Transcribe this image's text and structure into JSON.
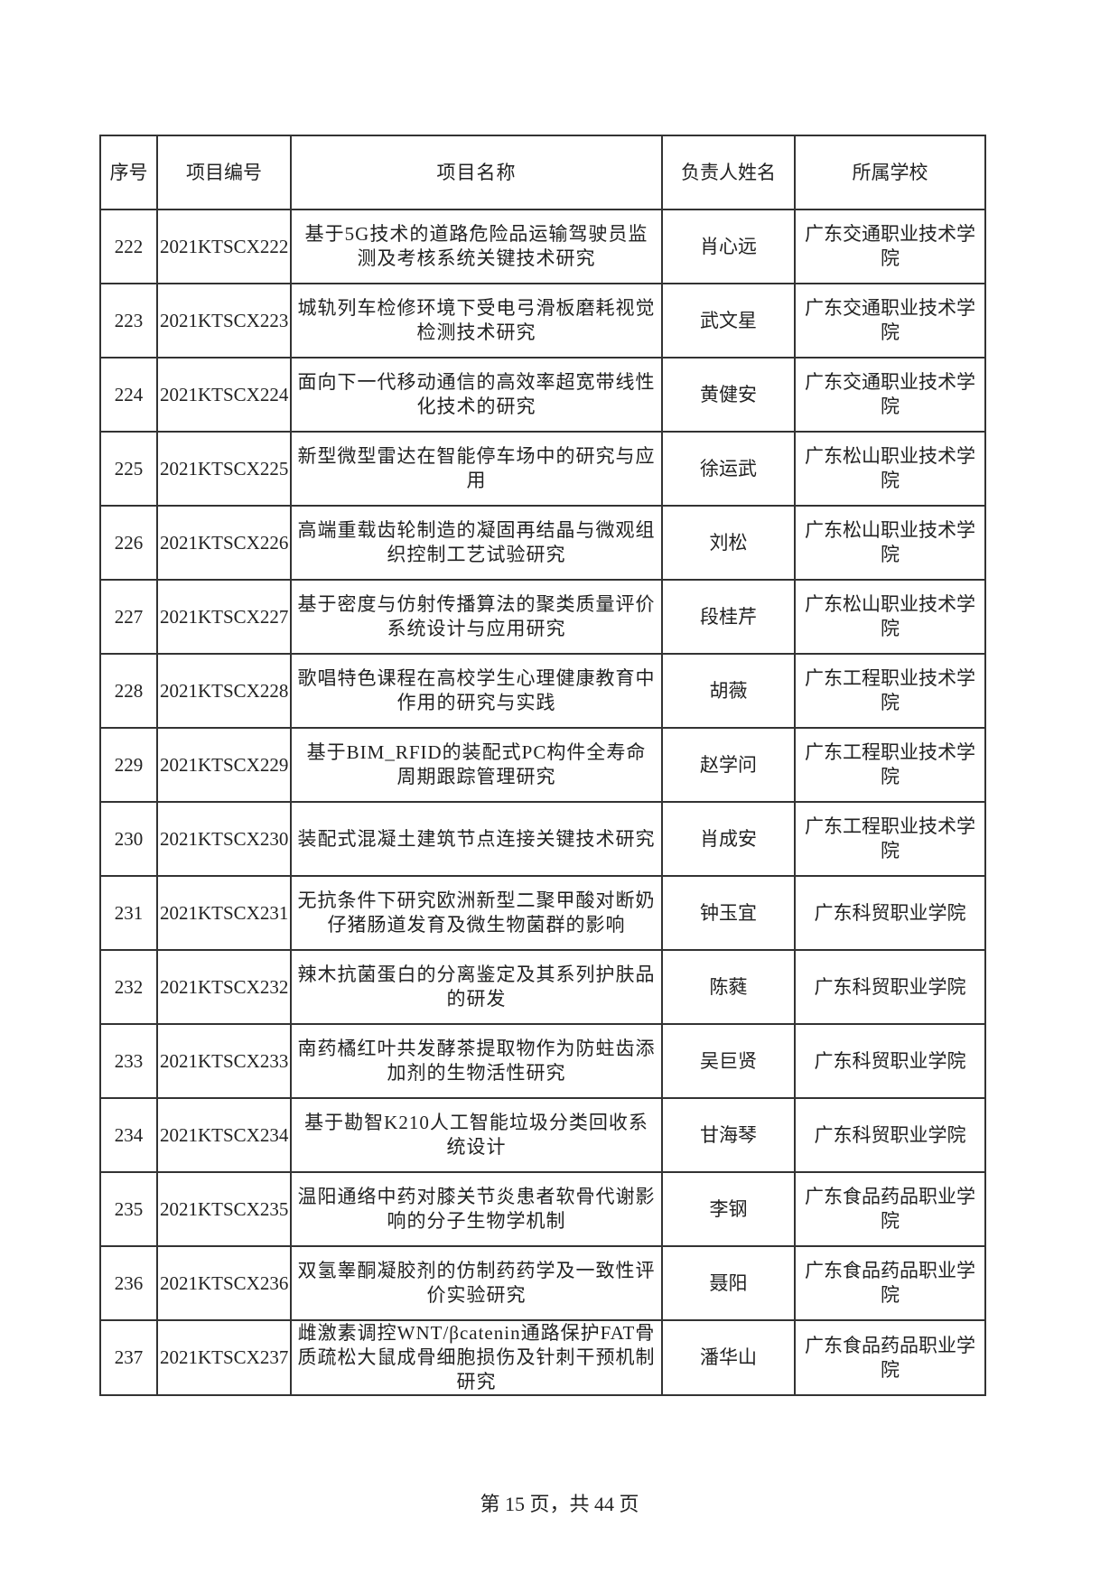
{
  "table": {
    "header": [
      "序号",
      "项目编号",
      "项目名称",
      "负责人姓名",
      "所属学校"
    ],
    "rows": [
      [
        "222",
        "2021KTSCX222",
        "基于5G技术的道路危险品运输驾驶员监测及考核系统关键技术研究",
        "肖心远",
        "广东交通职业技术学院"
      ],
      [
        "223",
        "2021KTSCX223",
        "城轨列车检修环境下受电弓滑板磨耗视觉检测技术研究",
        "武文星",
        "广东交通职业技术学院"
      ],
      [
        "224",
        "2021KTSCX224",
        "面向下一代移动通信的高效率超宽带线性化技术的研究",
        "黄健安",
        "广东交通职业技术学院"
      ],
      [
        "225",
        "2021KTSCX225",
        "新型微型雷达在智能停车场中的研究与应用",
        "徐运武",
        "广东松山职业技术学院"
      ],
      [
        "226",
        "2021KTSCX226",
        "高端重载齿轮制造的凝固再结晶与微观组织控制工艺试验研究",
        "刘松",
        "广东松山职业技术学院"
      ],
      [
        "227",
        "2021KTSCX227",
        "基于密度与仿射传播算法的聚类质量评价系统设计与应用研究",
        "段桂芹",
        "广东松山职业技术学院"
      ],
      [
        "228",
        "2021KTSCX228",
        "歌唱特色课程在高校学生心理健康教育中作用的研究与实践",
        "胡薇",
        "广东工程职业技术学院"
      ],
      [
        "229",
        "2021KTSCX229",
        "基于BIM_RFID的装配式PC构件全寿命周期跟踪管理研究",
        "赵学问",
        "广东工程职业技术学院"
      ],
      [
        "230",
        "2021KTSCX230",
        "装配式混凝土建筑节点连接关键技术研究",
        "肖成安",
        "广东工程职业技术学院"
      ],
      [
        "231",
        "2021KTSCX231",
        "无抗条件下研究欧洲新型二聚甲酸对断奶仔猪肠道发育及微生物菌群的影响",
        "钟玉宜",
        "广东科贸职业学院"
      ],
      [
        "232",
        "2021KTSCX232",
        "辣木抗菌蛋白的分离鉴定及其系列护肤品的研发",
        "陈蕤",
        "广东科贸职业学院"
      ],
      [
        "233",
        "2021KTSCX233",
        "南药橘红叶共发酵茶提取物作为防蛀齿添加剂的生物活性研究",
        "吴巨贤",
        "广东科贸职业学院"
      ],
      [
        "234",
        "2021KTSCX234",
        "基于勘智K210人工智能垃圾分类回收系统设计",
        "甘海琴",
        "广东科贸职业学院"
      ],
      [
        "235",
        "2021KTSCX235",
        "温阳通络中药对膝关节炎患者软骨代谢影响的分子生物学机制",
        "李钢",
        "广东食品药品职业学院"
      ],
      [
        "236",
        "2021KTSCX236",
        "双氢睾酮凝胶剂的仿制药药学及一致性评价实验研究",
        "聂阳",
        "广东食品药品职业学院"
      ],
      [
        "237",
        "2021KTSCX237",
        "雌激素调控WNT/βcatenin通路保护FAT骨质疏松大鼠成骨细胞损伤及针刺干预机制研究",
        "潘华山",
        "广东食品药品职业学院"
      ]
    ]
  },
  "footer": "第 15 页，共 44 页"
}
